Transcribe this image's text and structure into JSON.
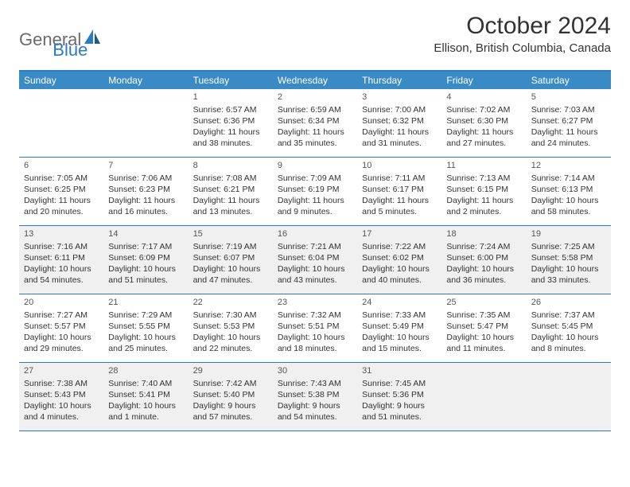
{
  "logo": {
    "general": "General",
    "blue": "Blue"
  },
  "title": "October 2024",
  "location": "Ellison, British Columbia, Canada",
  "dayHeaders": [
    "Sunday",
    "Monday",
    "Tuesday",
    "Wednesday",
    "Thursday",
    "Friday",
    "Saturday"
  ],
  "colors": {
    "headerBg": "#3a8ac5",
    "borderBlue": "#2c7abf",
    "shaded": "#f0f0f0",
    "text": "#333333"
  },
  "shadedRows": [
    2,
    4
  ],
  "startOffset": 2,
  "days": [
    {
      "n": "1",
      "sunrise": "Sunrise: 6:57 AM",
      "sunset": "Sunset: 6:36 PM",
      "dl1": "Daylight: 11 hours",
      "dl2": "and 38 minutes."
    },
    {
      "n": "2",
      "sunrise": "Sunrise: 6:59 AM",
      "sunset": "Sunset: 6:34 PM",
      "dl1": "Daylight: 11 hours",
      "dl2": "and 35 minutes."
    },
    {
      "n": "3",
      "sunrise": "Sunrise: 7:00 AM",
      "sunset": "Sunset: 6:32 PM",
      "dl1": "Daylight: 11 hours",
      "dl2": "and 31 minutes."
    },
    {
      "n": "4",
      "sunrise": "Sunrise: 7:02 AM",
      "sunset": "Sunset: 6:30 PM",
      "dl1": "Daylight: 11 hours",
      "dl2": "and 27 minutes."
    },
    {
      "n": "5",
      "sunrise": "Sunrise: 7:03 AM",
      "sunset": "Sunset: 6:27 PM",
      "dl1": "Daylight: 11 hours",
      "dl2": "and 24 minutes."
    },
    {
      "n": "6",
      "sunrise": "Sunrise: 7:05 AM",
      "sunset": "Sunset: 6:25 PM",
      "dl1": "Daylight: 11 hours",
      "dl2": "and 20 minutes."
    },
    {
      "n": "7",
      "sunrise": "Sunrise: 7:06 AM",
      "sunset": "Sunset: 6:23 PM",
      "dl1": "Daylight: 11 hours",
      "dl2": "and 16 minutes."
    },
    {
      "n": "8",
      "sunrise": "Sunrise: 7:08 AM",
      "sunset": "Sunset: 6:21 PM",
      "dl1": "Daylight: 11 hours",
      "dl2": "and 13 minutes."
    },
    {
      "n": "9",
      "sunrise": "Sunrise: 7:09 AM",
      "sunset": "Sunset: 6:19 PM",
      "dl1": "Daylight: 11 hours",
      "dl2": "and 9 minutes."
    },
    {
      "n": "10",
      "sunrise": "Sunrise: 7:11 AM",
      "sunset": "Sunset: 6:17 PM",
      "dl1": "Daylight: 11 hours",
      "dl2": "and 5 minutes."
    },
    {
      "n": "11",
      "sunrise": "Sunrise: 7:13 AM",
      "sunset": "Sunset: 6:15 PM",
      "dl1": "Daylight: 11 hours",
      "dl2": "and 2 minutes."
    },
    {
      "n": "12",
      "sunrise": "Sunrise: 7:14 AM",
      "sunset": "Sunset: 6:13 PM",
      "dl1": "Daylight: 10 hours",
      "dl2": "and 58 minutes."
    },
    {
      "n": "13",
      "sunrise": "Sunrise: 7:16 AM",
      "sunset": "Sunset: 6:11 PM",
      "dl1": "Daylight: 10 hours",
      "dl2": "and 54 minutes."
    },
    {
      "n": "14",
      "sunrise": "Sunrise: 7:17 AM",
      "sunset": "Sunset: 6:09 PM",
      "dl1": "Daylight: 10 hours",
      "dl2": "and 51 minutes."
    },
    {
      "n": "15",
      "sunrise": "Sunrise: 7:19 AM",
      "sunset": "Sunset: 6:07 PM",
      "dl1": "Daylight: 10 hours",
      "dl2": "and 47 minutes."
    },
    {
      "n": "16",
      "sunrise": "Sunrise: 7:21 AM",
      "sunset": "Sunset: 6:04 PM",
      "dl1": "Daylight: 10 hours",
      "dl2": "and 43 minutes."
    },
    {
      "n": "17",
      "sunrise": "Sunrise: 7:22 AM",
      "sunset": "Sunset: 6:02 PM",
      "dl1": "Daylight: 10 hours",
      "dl2": "and 40 minutes."
    },
    {
      "n": "18",
      "sunrise": "Sunrise: 7:24 AM",
      "sunset": "Sunset: 6:00 PM",
      "dl1": "Daylight: 10 hours",
      "dl2": "and 36 minutes."
    },
    {
      "n": "19",
      "sunrise": "Sunrise: 7:25 AM",
      "sunset": "Sunset: 5:58 PM",
      "dl1": "Daylight: 10 hours",
      "dl2": "and 33 minutes."
    },
    {
      "n": "20",
      "sunrise": "Sunrise: 7:27 AM",
      "sunset": "Sunset: 5:57 PM",
      "dl1": "Daylight: 10 hours",
      "dl2": "and 29 minutes."
    },
    {
      "n": "21",
      "sunrise": "Sunrise: 7:29 AM",
      "sunset": "Sunset: 5:55 PM",
      "dl1": "Daylight: 10 hours",
      "dl2": "and 25 minutes."
    },
    {
      "n": "22",
      "sunrise": "Sunrise: 7:30 AM",
      "sunset": "Sunset: 5:53 PM",
      "dl1": "Daylight: 10 hours",
      "dl2": "and 22 minutes."
    },
    {
      "n": "23",
      "sunrise": "Sunrise: 7:32 AM",
      "sunset": "Sunset: 5:51 PM",
      "dl1": "Daylight: 10 hours",
      "dl2": "and 18 minutes."
    },
    {
      "n": "24",
      "sunrise": "Sunrise: 7:33 AM",
      "sunset": "Sunset: 5:49 PM",
      "dl1": "Daylight: 10 hours",
      "dl2": "and 15 minutes."
    },
    {
      "n": "25",
      "sunrise": "Sunrise: 7:35 AM",
      "sunset": "Sunset: 5:47 PM",
      "dl1": "Daylight: 10 hours",
      "dl2": "and 11 minutes."
    },
    {
      "n": "26",
      "sunrise": "Sunrise: 7:37 AM",
      "sunset": "Sunset: 5:45 PM",
      "dl1": "Daylight: 10 hours",
      "dl2": "and 8 minutes."
    },
    {
      "n": "27",
      "sunrise": "Sunrise: 7:38 AM",
      "sunset": "Sunset: 5:43 PM",
      "dl1": "Daylight: 10 hours",
      "dl2": "and 4 minutes."
    },
    {
      "n": "28",
      "sunrise": "Sunrise: 7:40 AM",
      "sunset": "Sunset: 5:41 PM",
      "dl1": "Daylight: 10 hours",
      "dl2": "and 1 minute."
    },
    {
      "n": "29",
      "sunrise": "Sunrise: 7:42 AM",
      "sunset": "Sunset: 5:40 PM",
      "dl1": "Daylight: 9 hours",
      "dl2": "and 57 minutes."
    },
    {
      "n": "30",
      "sunrise": "Sunrise: 7:43 AM",
      "sunset": "Sunset: 5:38 PM",
      "dl1": "Daylight: 9 hours",
      "dl2": "and 54 minutes."
    },
    {
      "n": "31",
      "sunrise": "Sunrise: 7:45 AM",
      "sunset": "Sunset: 5:36 PM",
      "dl1": "Daylight: 9 hours",
      "dl2": "and 51 minutes."
    }
  ]
}
